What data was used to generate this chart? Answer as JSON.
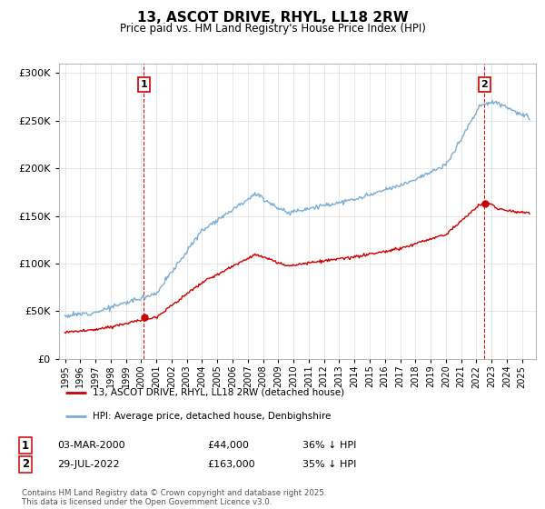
{
  "title": "13, ASCOT DRIVE, RHYL, LL18 2RW",
  "subtitle": "Price paid vs. HM Land Registry's House Price Index (HPI)",
  "footnote": "Contains HM Land Registry data © Crown copyright and database right 2025.\nThis data is licensed under the Open Government Licence v3.0.",
  "legend_entry1": "13, ASCOT DRIVE, RHYL, LL18 2RW (detached house)",
  "legend_entry2": "HPI: Average price, detached house, Denbighshire",
  "point1_date": "03-MAR-2000",
  "point1_price": "£44,000",
  "point1_hpi": "36% ↓ HPI",
  "point2_date": "29-JUL-2022",
  "point2_price": "£163,000",
  "point2_hpi": "35% ↓ HPI",
  "color_house": "#cc0000",
  "color_hpi": "#7aaed6",
  "color_vline": "#cc0000",
  "ylim_max": 310000,
  "ylim_min": 0,
  "background": "#ffffff",
  "grid_color": "#dddddd",
  "sale1_year": 2000.17,
  "sale1_price": 44000,
  "sale2_year": 2022.54,
  "sale2_price": 163000
}
